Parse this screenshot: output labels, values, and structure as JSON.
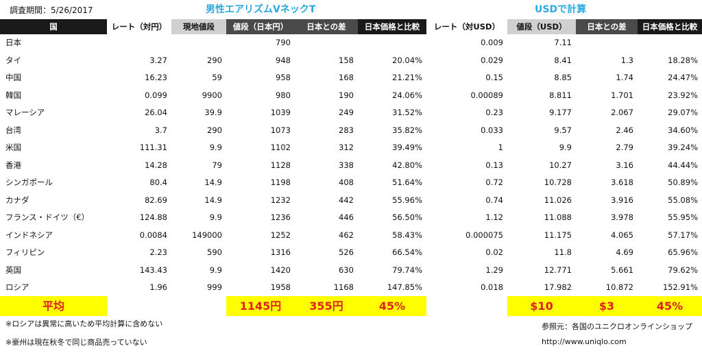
{
  "period": "調査期間：5/26/2017",
  "titles": {
    "jpy_section": "男性エアリズムVネックT",
    "usd_section": "USDで計算"
  },
  "headers": [
    "国",
    "レート（対円）",
    "現地値段",
    "値段（日本円）",
    "日本との差",
    "日本価格と比較",
    "レート（対USD）",
    "値段（USD）",
    "日本との差",
    "日本価格と比較"
  ],
  "rows": [
    [
      "日本",
      "",
      "",
      "790",
      "",
      "",
      "0.009",
      "7.11",
      "",
      ""
    ],
    [
      "タイ",
      "3.27",
      "290",
      "948",
      "158",
      "20.04%",
      "0.029",
      "8.41",
      "1.3",
      "18.28%"
    ],
    [
      "中国",
      "16.23",
      "59",
      "958",
      "168",
      "21.21%",
      "0.15",
      "8.85",
      "1.74",
      "24.47%"
    ],
    [
      "韓国",
      "0.099",
      "9900",
      "980",
      "190",
      "24.06%",
      "0.00089",
      "8.811",
      "1.701",
      "23.92%"
    ],
    [
      "マレーシア",
      "26.04",
      "39.9",
      "1039",
      "249",
      "31.52%",
      "0.23",
      "9.177",
      "2.067",
      "29.07%"
    ],
    [
      "台湾",
      "3.7",
      "290",
      "1073",
      "283",
      "35.82%",
      "0.033",
      "9.57",
      "2.46",
      "34.60%"
    ],
    [
      "米国",
      "111.31",
      "9.9",
      "1102",
      "312",
      "39.49%",
      "1",
      "9.9",
      "2.79",
      "39.24%"
    ],
    [
      "香港",
      "14.28",
      "79",
      "1128",
      "338",
      "42.80%",
      "0.13",
      "10.27",
      "3.16",
      "44.44%"
    ],
    [
      "シンガポール",
      "80.4",
      "14.9",
      "1198",
      "408",
      "51.64%",
      "0.72",
      "10.728",
      "3.618",
      "50.89%"
    ],
    [
      "カナダ",
      "82.69",
      "14.9",
      "1232",
      "442",
      "55.96%",
      "0.74",
      "11.026",
      "3.916",
      "55.08%"
    ],
    [
      "フランス・ドイツ（€）",
      "124.88",
      "9.9",
      "1236",
      "446",
      "56.50%",
      "1.12",
      "11.088",
      "3.978",
      "55.95%"
    ],
    [
      "インドネシア",
      "0.0084",
      "149000",
      "1252",
      "462",
      "58.43%",
      "0.000075",
      "11.175",
      "4.065",
      "57.17%"
    ],
    [
      "フィリピン",
      "2.23",
      "590",
      "1316",
      "526",
      "66.54%",
      "0.02",
      "11.8",
      "4.69",
      "65.96%"
    ],
    [
      "英国",
      "143.43",
      "9.9",
      "1420",
      "630",
      "79.74%",
      "1.29",
      "12.771",
      "5.661",
      "79.62%"
    ],
    [
      "ロシア",
      "1.96",
      "999",
      "1958",
      "1168",
      "147.85%",
      "0.018",
      "17.982",
      "10.872",
      "152.91%"
    ]
  ],
  "average": {
    "label": "平均",
    "jpy_price": "1145円",
    "jpy_diff": "355円",
    "jpy_pct": "45%",
    "usd_price": "$10",
    "usd_diff": "$3",
    "usd_pct": "45%"
  },
  "notes": [
    "※ロシアは異常に高いため平均計算に含めない",
    "※豪州は現在秋冬で同じ商品売っていない"
  ],
  "source": {
    "label": "参照元：各国のユニクロオンラインショップ",
    "url": "http://www.uniqlo.com"
  }
}
